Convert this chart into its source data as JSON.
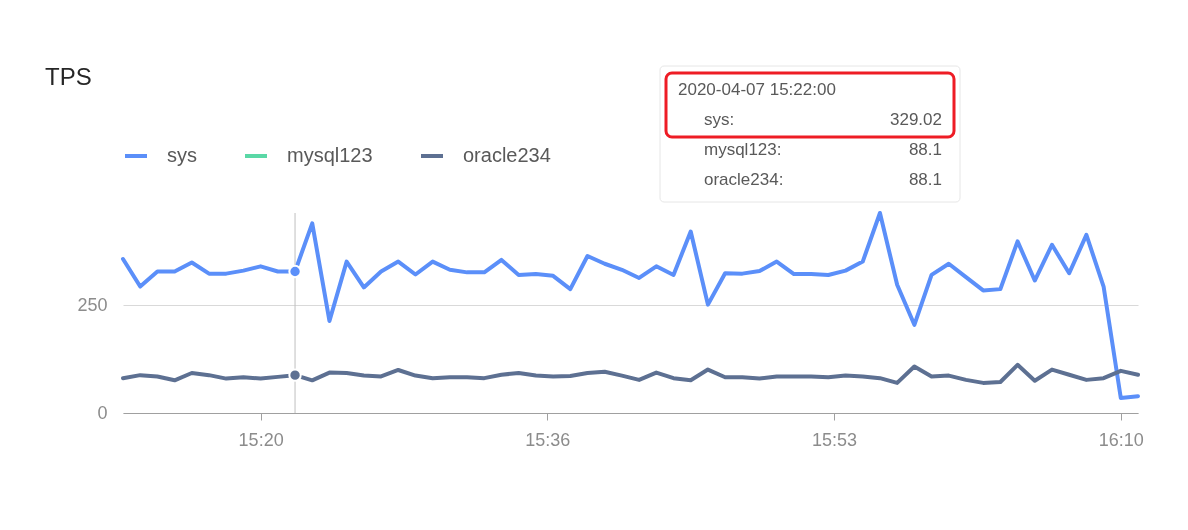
{
  "chart_data": {
    "type": "line",
    "title": "TPS",
    "x": [
      "2020-04-07T15:12",
      "2020-04-07T15:13",
      "2020-04-07T15:14",
      "2020-04-07T15:15",
      "2020-04-07T15:16",
      "2020-04-07T15:17",
      "2020-04-07T15:18",
      "2020-04-07T15:19",
      "2020-04-07T15:20",
      "2020-04-07T15:21",
      "2020-04-07T15:22",
      "2020-04-07T15:23",
      "2020-04-07T15:24",
      "2020-04-07T15:25",
      "2020-04-07T15:26",
      "2020-04-07T15:27",
      "2020-04-07T15:28",
      "2020-04-07T15:29",
      "2020-04-07T15:30",
      "2020-04-07T15:31",
      "2020-04-07T15:32",
      "2020-04-07T15:33",
      "2020-04-07T15:34",
      "2020-04-07T15:35",
      "2020-04-07T15:36",
      "2020-04-07T15:37",
      "2020-04-07T15:38",
      "2020-04-07T15:39",
      "2020-04-07T15:40",
      "2020-04-07T15:41",
      "2020-04-07T15:42",
      "2020-04-07T15:43",
      "2020-04-07T15:44",
      "2020-04-07T15:45",
      "2020-04-07T15:46",
      "2020-04-07T15:47",
      "2020-04-07T15:48",
      "2020-04-07T15:49",
      "2020-04-07T15:50",
      "2020-04-07T15:51",
      "2020-04-07T15:52",
      "2020-04-07T15:53",
      "2020-04-07T15:54",
      "2020-04-07T15:55",
      "2020-04-07T15:56",
      "2020-04-07T15:57",
      "2020-04-07T15:58",
      "2020-04-07T15:59",
      "2020-04-07T16:00",
      "2020-04-07T16:01",
      "2020-04-07T16:02",
      "2020-04-07T16:03",
      "2020-04-07T16:04",
      "2020-04-07T16:05",
      "2020-04-07T16:06",
      "2020-04-07T16:07",
      "2020-04-07T16:08",
      "2020-04-07T16:09",
      "2020-04-07T16:10",
      "2020-04-07T16:11"
    ],
    "series": [
      {
        "name": "sys",
        "color": "#5b8ff9",
        "values": [
          358,
          294,
          329,
          329,
          350,
          324,
          324,
          331,
          341,
          329,
          329,
          441,
          214,
          352,
          292,
          329,
          352,
          322,
          352,
          333,
          327,
          327,
          356,
          321,
          323,
          319,
          288,
          365,
          347,
          333,
          314,
          341,
          321,
          422,
          252,
          325,
          324,
          330,
          352,
          323,
          323,
          321,
          331,
          352,
          465,
          298,
          205,
          321,
          347,
          316,
          285,
          288,
          399,
          308,
          391,
          325,
          414,
          294,
          35,
          39
        ]
      },
      {
        "name": "mysql123",
        "color": "#5ad8a6",
        "values": [
          null,
          null,
          null,
          null,
          null,
          null,
          null,
          null,
          null,
          null,
          null,
          null,
          null,
          null,
          null,
          null,
          null,
          null,
          null,
          null,
          null,
          null,
          null,
          null,
          null,
          null,
          null,
          null,
          null,
          null,
          null,
          null,
          null,
          null,
          null,
          null,
          null,
          null,
          null,
          null,
          null,
          null,
          null,
          null,
          null,
          null,
          null,
          null,
          null,
          null,
          null,
          null,
          null,
          null,
          null,
          null,
          null,
          null,
          null,
          null
        ]
      },
      {
        "name": "oracle234",
        "color": "#5d7092",
        "values": [
          81,
          88,
          85,
          76,
          93,
          88,
          80,
          83,
          80,
          84,
          88,
          76,
          94,
          93,
          87,
          85,
          100,
          87,
          81,
          83,
          83,
          81,
          89,
          93,
          87,
          85,
          86,
          93,
          96,
          87,
          77,
          94,
          81,
          76,
          101,
          83,
          83,
          80,
          85,
          85,
          85,
          83,
          87,
          85,
          81,
          70,
          108,
          85,
          87,
          77,
          70,
          72,
          112,
          75,
          101,
          89,
          77,
          81,
          98,
          89
        ]
      }
    ],
    "xlim": [
      "2020-04-07T15:12",
      "2020-04-07T16:11"
    ],
    "xticks": [
      {
        "value": "2020-04-07T15:20",
        "label": "15:20"
      },
      {
        "value": "2020-04-07T15:36:40",
        "label": "15:36"
      },
      {
        "value": "2020-04-07T15:53:20",
        "label": "15:53"
      },
      {
        "value": "2020-04-07T16:10",
        "label": "16:10"
      }
    ],
    "ylim": [
      0,
      465
    ],
    "yticks": [
      0,
      250
    ],
    "grid": "y",
    "legend": "top left",
    "ref_lines": [
      {
        "axis": "x",
        "value": "2020-04-07T15:22",
        "color": "#bfbfbf"
      }
    ],
    "annotations": [
      "2020-04-07 15:22:00",
      "sys:",
      "329.02",
      "mysql123:",
      "88.1",
      "oracle234:",
      "88.1"
    ]
  }
}
